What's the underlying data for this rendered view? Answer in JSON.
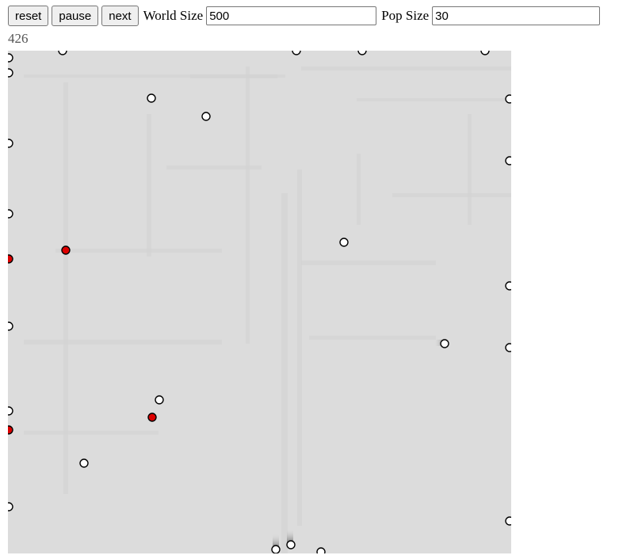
{
  "controls": {
    "reset_label": "reset",
    "pause_label": "pause",
    "next_label": "next",
    "world_size_label": "World Size",
    "world_size_value": "500",
    "pop_size_label": "Pop Size",
    "pop_size_value": "30"
  },
  "generation_counter": "426",
  "colors": {
    "background": "#dcdcdc",
    "agent_normal": "#ffffff",
    "agent_infected": "#dd0000",
    "agent_stroke": "#000000"
  }
}
